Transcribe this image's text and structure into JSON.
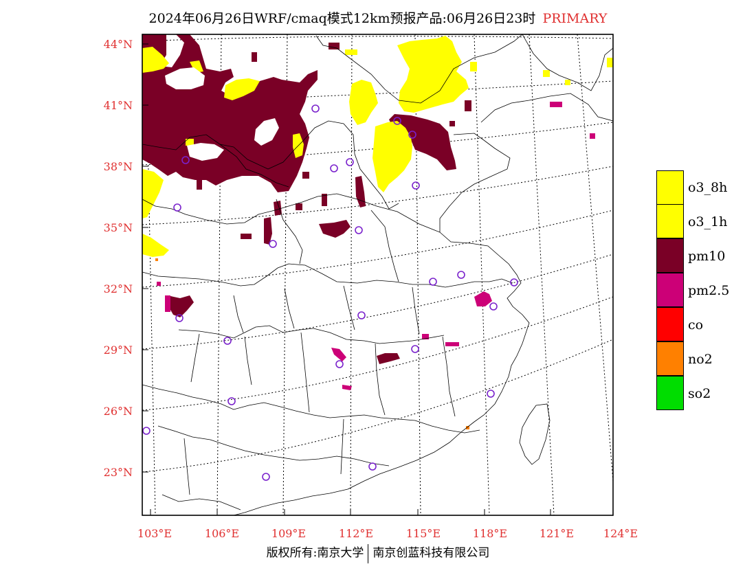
{
  "header": {
    "title": "2024年06月26日WRF/cmaq模式12km预报产品:06月26日23时",
    "tag": "PRIMARY"
  },
  "map": {
    "lat_labels": [
      "44°N",
      "41°N",
      "38°N",
      "35°N",
      "32°N",
      "29°N",
      "26°N",
      "23°N"
    ],
    "lon_labels": [
      "103°E",
      "106°E",
      "109°E",
      "112°E",
      "115°E",
      "118°E",
      "121°E",
      "124°E"
    ],
    "colors": {
      "o3": "#ffff00",
      "pm10": "#7a0026",
      "pm25": "#cc0077",
      "co": "#ff0000",
      "no2": "#ff8000",
      "so2": "#00dd00",
      "station": "#7a22cc"
    }
  },
  "legend": {
    "items": [
      {
        "label": "o3_8h",
        "color": "#ffff00"
      },
      {
        "label": "o3_1h",
        "color": "#ffff00"
      },
      {
        "label": "pm10",
        "color": "#7a0026"
      },
      {
        "label": "pm2.5",
        "color": "#cc0077"
      },
      {
        "label": "co",
        "color": "#ff0000"
      },
      {
        "label": "no2",
        "color": "#ff8000"
      },
      {
        "label": "so2",
        "color": "#00dd00"
      }
    ]
  },
  "footer": {
    "left": "版权所有:南京大学",
    "right": "南京创蓝科技有限公司"
  }
}
